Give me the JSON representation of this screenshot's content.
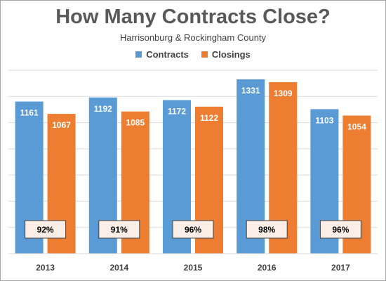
{
  "chart_data": {
    "type": "bar",
    "title": "How Many Contracts Close?",
    "subtitle": "Harrisonburg & Rockingham County",
    "categories": [
      "2013",
      "2014",
      "2015",
      "2016",
      "2017"
    ],
    "series": [
      {
        "name": "Contracts",
        "color": "#5b9bd5",
        "values": [
          1161,
          1192,
          1172,
          1331,
          1103
        ]
      },
      {
        "name": "Closings",
        "color": "#ed7d31",
        "values": [
          1067,
          1085,
          1122,
          1309,
          1054
        ]
      }
    ],
    "annotations": [
      "92%",
      "91%",
      "96%",
      "98%",
      "96%"
    ],
    "ylim": [
      0,
      1400
    ],
    "grid": true,
    "legend": "top-center",
    "xlabel": "",
    "ylabel": ""
  }
}
